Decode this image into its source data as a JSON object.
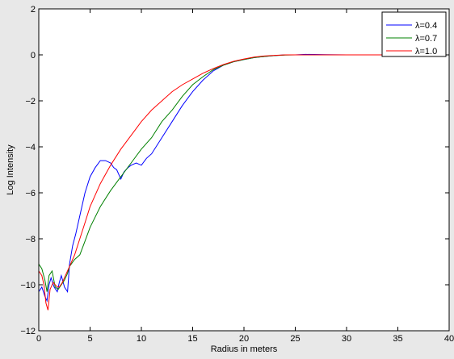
{
  "chart_data": {
    "type": "line",
    "title": "",
    "xlabel": "Radius in meters",
    "ylabel": "Log Intensity",
    "xlim": [
      0,
      40
    ],
    "ylim": [
      -12,
      2
    ],
    "xticks": [
      0,
      5,
      10,
      15,
      20,
      25,
      30,
      35,
      40
    ],
    "yticks": [
      2,
      0,
      -2,
      -4,
      -6,
      -8,
      -10,
      -12
    ],
    "grid": false,
    "legend_position": "top-right",
    "series": [
      {
        "name": "λ=0.4",
        "color": "#0000ff",
        "x": [
          0,
          0.3,
          0.6,
          0.8,
          1.0,
          1.2,
          1.5,
          1.8,
          2.0,
          2.2,
          2.5,
          2.8,
          3.0,
          3.3,
          3.6,
          4.0,
          4.5,
          5.0,
          5.5,
          6.0,
          6.5,
          7.0,
          7.3,
          7.6,
          8.0,
          8.3,
          8.7,
          9.0,
          9.5,
          10.0,
          10.5,
          11.0,
          12.0,
          13.0,
          14.0,
          15.0,
          16.0,
          17.0,
          18.0,
          19.0,
          20.0,
          21.0,
          22.0,
          23.0,
          24.0,
          25.0,
          26.0,
          28.0,
          30.0,
          35.0,
          40.0
        ],
        "y": [
          -10.3,
          -10.1,
          -10.5,
          -10.7,
          -10.0,
          -9.7,
          -10.1,
          -10.3,
          -9.9,
          -9.6,
          -10.1,
          -10.3,
          -9.1,
          -8.3,
          -7.8,
          -7.0,
          -6.0,
          -5.3,
          -4.9,
          -4.6,
          -4.6,
          -4.7,
          -4.9,
          -5.0,
          -5.4,
          -5.1,
          -4.9,
          -4.8,
          -4.7,
          -4.8,
          -4.5,
          -4.3,
          -3.6,
          -2.9,
          -2.2,
          -1.6,
          -1.1,
          -0.7,
          -0.45,
          -0.3,
          -0.2,
          -0.12,
          -0.07,
          -0.03,
          0.0,
          0.0,
          0.02,
          0.01,
          0.0,
          0.0,
          0.0
        ]
      },
      {
        "name": "λ=0.7",
        "color": "#008000",
        "x": [
          0,
          0.3,
          0.6,
          0.8,
          1.0,
          1.3,
          1.6,
          1.9,
          2.2,
          2.5,
          2.8,
          3.0,
          3.5,
          4.0,
          4.5,
          5.0,
          6.0,
          7.0,
          8.0,
          9.0,
          10.0,
          11.0,
          12.0,
          13.0,
          14.0,
          15.0,
          16.0,
          17.0,
          18.0,
          19.0,
          20.0,
          21.0,
          22.0,
          23.0,
          24.0,
          25.0,
          26.0,
          28.0,
          30.0,
          35.0,
          40.0
        ],
        "y": [
          -9.1,
          -9.3,
          -9.8,
          -10.3,
          -9.6,
          -9.4,
          -10.1,
          -10.2,
          -10.0,
          -9.8,
          -9.5,
          -9.2,
          -8.9,
          -8.7,
          -8.1,
          -7.5,
          -6.6,
          -5.9,
          -5.3,
          -4.7,
          -4.1,
          -3.6,
          -2.9,
          -2.4,
          -1.8,
          -1.3,
          -0.95,
          -0.65,
          -0.45,
          -0.3,
          -0.2,
          -0.12,
          -0.07,
          -0.03,
          -0.01,
          0.0,
          0.0,
          0.0,
          0.0,
          0.0,
          0.0
        ]
      },
      {
        "name": "λ=1.0",
        "color": "#ff0000",
        "x": [
          0,
          0.3,
          0.5,
          0.7,
          0.9,
          1.1,
          1.4,
          1.8,
          2.0,
          2.3,
          2.6,
          3.0,
          3.5,
          4.0,
          4.5,
          5.0,
          6.0,
          7.0,
          8.0,
          9.0,
          10.0,
          11.0,
          12.0,
          13.0,
          14.0,
          15.0,
          16.0,
          17.0,
          18.0,
          19.0,
          20.0,
          21.0,
          22.0,
          23.0,
          24.0,
          25.0,
          26.0,
          28.0,
          30.0,
          35.0,
          40.0
        ],
        "y": [
          -9.4,
          -9.6,
          -10.0,
          -10.8,
          -11.1,
          -10.2,
          -9.9,
          -10.1,
          -10.1,
          -9.9,
          -9.6,
          -9.2,
          -8.7,
          -8.0,
          -7.3,
          -6.6,
          -5.6,
          -4.8,
          -4.1,
          -3.5,
          -2.9,
          -2.4,
          -2.0,
          -1.6,
          -1.3,
          -1.05,
          -0.8,
          -0.6,
          -0.42,
          -0.28,
          -0.18,
          -0.1,
          -0.05,
          -0.02,
          0.0,
          0.0,
          0.0,
          0.0,
          0.0,
          0.0,
          0.0
        ]
      }
    ]
  }
}
